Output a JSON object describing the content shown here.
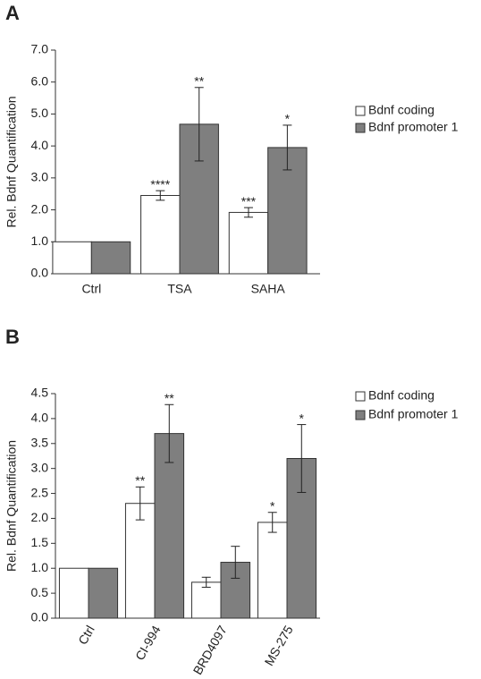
{
  "chart_data": [
    {
      "type": "bar",
      "panel": "A",
      "ylabel": "Rel. Bdnf Quantification",
      "categories": [
        "Ctrl",
        "TSA",
        "SAHA"
      ],
      "series": [
        {
          "name": "Bdnf coding",
          "color": "#ffffff",
          "values": [
            1,
            2.45,
            1.92
          ],
          "errors": [
            0,
            0.15,
            0.15
          ],
          "annotations": [
            null,
            "****",
            "***"
          ]
        },
        {
          "name": "Bdnf promoter 1",
          "color": "#7f7f7f",
          "values": [
            1,
            4.68,
            3.95
          ],
          "errors": [
            0,
            1.15,
            0.7
          ],
          "annotations": [
            null,
            "**",
            "*"
          ]
        }
      ],
      "ylim": [
        0,
        7
      ],
      "yticks": [
        {
          "value": 0,
          "label": "0.0"
        },
        {
          "value": 1,
          "label": "1.0"
        },
        {
          "value": 2,
          "label": "2.0"
        },
        {
          "value": 3,
          "label": "3.0"
        },
        {
          "value": 4,
          "label": "4.0"
        },
        {
          "value": 5,
          "label": "5.0"
        },
        {
          "value": 6,
          "label": "6.0"
        },
        {
          "value": 7,
          "label": "7.0"
        }
      ],
      "xlabel_rotation": 0
    },
    {
      "type": "bar",
      "panel": "B",
      "ylabel": "Rel. Bdnf Quantification",
      "categories": [
        "Ctrl",
        "CI-994",
        "BRD4097",
        "MS-275"
      ],
      "series": [
        {
          "name": "Bdnf coding",
          "color": "#ffffff",
          "values": [
            1,
            2.3,
            0.72,
            1.92
          ],
          "errors": [
            0,
            0.33,
            0.1,
            0.2
          ],
          "annotations": [
            null,
            "**",
            null,
            "*"
          ]
        },
        {
          "name": "Bdnf promoter 1",
          "color": "#7f7f7f",
          "values": [
            1,
            3.7,
            1.12,
            3.2
          ],
          "errors": [
            0,
            0.58,
            0.32,
            0.68
          ],
          "annotations": [
            null,
            "**",
            null,
            "*"
          ]
        }
      ],
      "ylim": [
        0,
        4.5
      ],
      "yticks": [
        {
          "value": 0,
          "label": "0.0"
        },
        {
          "value": 0.5,
          "label": "0.5"
        },
        {
          "value": 1,
          "label": "1.0"
        },
        {
          "value": 1.5,
          "label": "1.5"
        },
        {
          "value": 2,
          "label": "2.0"
        },
        {
          "value": 2.5,
          "label": "2.5"
        },
        {
          "value": 3,
          "label": "3.0"
        },
        {
          "value": 3.5,
          "label": "3.5"
        },
        {
          "value": 4,
          "label": "4.0"
        },
        {
          "value": 4.5,
          "label": "4.5"
        }
      ],
      "xlabel_rotation": -60
    }
  ]
}
